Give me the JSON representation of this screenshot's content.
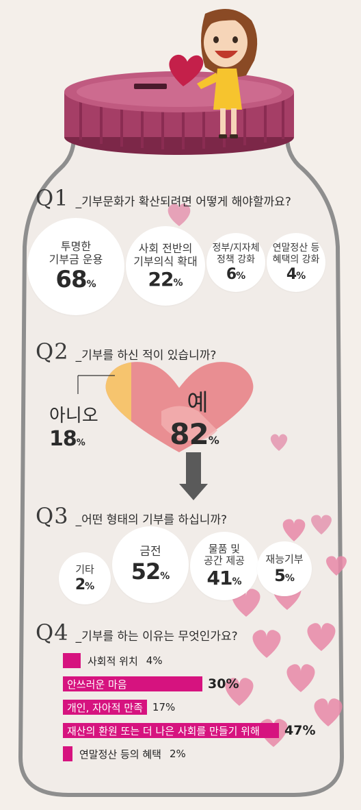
{
  "colors": {
    "accent": "#d6137f",
    "heart_pink": "#e8878f",
    "heart_orange": "#f6c46e",
    "jar_lid": "#a03d63"
  },
  "chart_data": [
    {
      "id": "q1",
      "type": "bubble",
      "question": "Q1",
      "title": "_기부문화가 확산되려면 어떻게 해야할까요?",
      "categories": [
        "투명한\n기부금 운용",
        "사회 전반의\n기부의식 확대",
        "정부/지자체\n정책 강화",
        "연말정산 등\n혜택의 강화"
      ],
      "values": [
        68,
        22,
        6,
        4
      ],
      "unit": "%"
    },
    {
      "id": "q2",
      "type": "pie",
      "question": "Q2",
      "title": "_기부를 하신 적이  있습니까?",
      "categories": [
        "예",
        "아니오"
      ],
      "values": [
        82,
        18
      ],
      "unit": "%"
    },
    {
      "id": "q3",
      "type": "bubble",
      "question": "Q3",
      "title": "_어떤 형태의 기부를 하십니까?",
      "categories": [
        "기타",
        "금전",
        "물품 및\n공간 제공",
        "재능기부"
      ],
      "values": [
        2,
        52,
        41,
        5
      ],
      "unit": "%"
    },
    {
      "id": "q4",
      "type": "bar",
      "question": "Q4",
      "title": "_기부를 하는 이유는 무엇인가요?",
      "categories": [
        "사회적 위치",
        "안쓰러운 마음",
        "개인, 자아적 만족",
        "재산의 환원 또는 더 나은 사회를 만들기 위해",
        "연말정산 등의 혜택"
      ],
      "values": [
        4,
        30,
        17,
        47,
        2
      ],
      "unit": "%"
    }
  ]
}
